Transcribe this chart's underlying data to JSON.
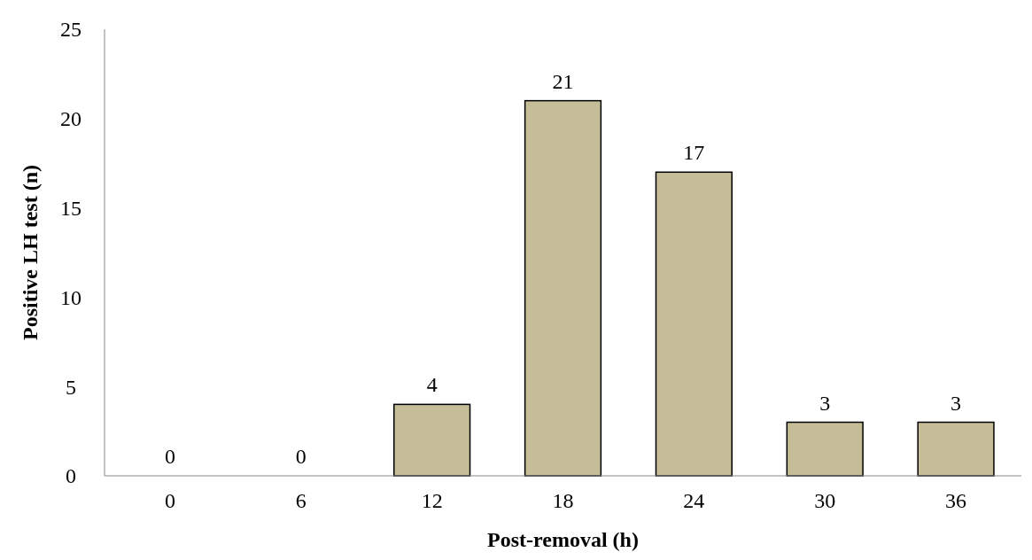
{
  "chart_data": {
    "type": "bar",
    "xlabel": "Post-removal (h)",
    "ylabel": "Positive LH test (n)",
    "categories": [
      "0",
      "6",
      "12",
      "18",
      "24",
      "30",
      "36"
    ],
    "values": [
      0,
      0,
      4,
      21,
      17,
      3,
      3
    ],
    "color": "#c4bd97",
    "ylim": [
      0,
      25
    ],
    "yticks": [
      0,
      5,
      10,
      15,
      20,
      25
    ],
    "grid": false,
    "data_labels": true
  }
}
